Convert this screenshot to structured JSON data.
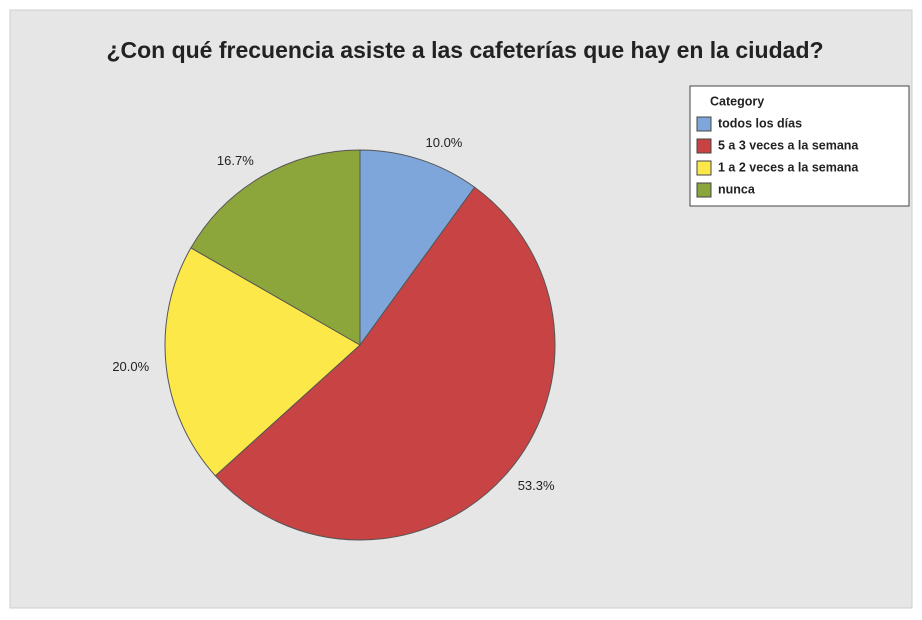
{
  "chart_data": {
    "type": "pie",
    "title": "¿Con qué frecuencia asiste a las cafeterías que hay en la ciudad?",
    "legend_title": "Category",
    "legend": "top-right",
    "categories": [
      "todos los días",
      "5 a 3 veces a la semana",
      "1 a 2 veces a la semana",
      "nunca"
    ],
    "values": [
      10.0,
      53.3,
      20.0,
      16.7
    ],
    "value_labels": [
      "10.0%",
      "53.3%",
      "20.0%",
      "16.7%"
    ],
    "colors": [
      "#7ea6da",
      "#c84444",
      "#fde84a",
      "#8ca63c"
    ]
  }
}
